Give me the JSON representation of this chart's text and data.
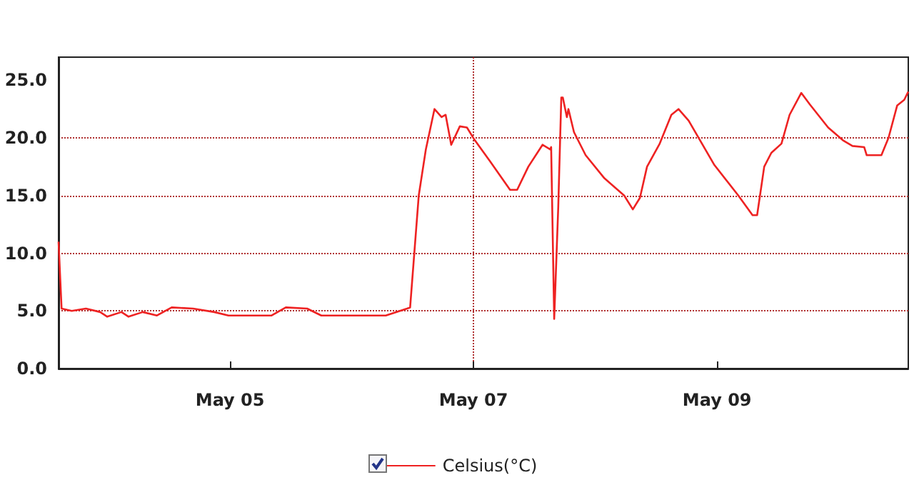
{
  "chart_data": {
    "type": "line",
    "x": [
      "--05-03T14:12",
      "--05-03T14:48",
      "--05-03T16:48",
      "--05-03T19:36",
      "--05-03T22:24",
      "--05-03T23:48",
      "--05-04T02:36",
      "--05-04T04:00",
      "--05-04T06:48",
      "--05-04T09:36",
      "--05-04T12:30",
      "--05-04T16:42",
      "--05-04T20:54",
      "--05-04T23:42",
      "--05-05T03:54",
      "--05-05T08:12",
      "--05-05T11:00",
      "--05-05T15:12",
      "--05-05T18:00",
      "--05-05T22:12",
      "--05-06T02:30",
      "--05-06T06:42",
      "--05-06T10:54",
      "--05-06T11:30",
      "--05-06T13:12",
      "--05-06T14:36",
      "--05-06T16:18",
      "--05-06T17:42",
      "--05-06T18:30",
      "--05-06T19:36",
      "--05-06T21:18",
      "--05-06T22:42",
      "--05-07T00:06",
      "--05-07T03:12",
      "--05-07T07:12",
      "--05-07T08:36",
      "--05-07T10:48",
      "--05-07T13:36",
      "--05-07T15:06",
      "--05-07T15:18",
      "--05-07T15:54",
      "--05-07T16:42",
      "--05-07T17:18",
      "--05-07T17:36",
      "--05-07T18:24",
      "--05-07T18:42",
      "--05-07T19:48",
      "--05-07T22:06",
      "--05-08T01:48",
      "--05-08T05:42",
      "--05-08T07:24",
      "--05-08T08:48",
      "--05-08T10:12",
      "--05-08T12:42",
      "--05-08T15:00",
      "--05-08T16:24",
      "--05-08T18:24",
      "--05-08T23:24",
      "--05-09T04:12",
      "--05-09T07:00",
      "--05-09T07:54",
      "--05-09T09:18",
      "--05-09T10:42",
      "--05-09T12:42",
      "--05-09T14:18",
      "--05-09T16:36",
      "--05-09T18:18",
      "--05-09T21:54",
      "--05-10T00:48",
      "--05-10T02:42",
      "--05-10T05:00",
      "--05-10T05:30",
      "--05-10T08:24",
      "--05-10T09:48",
      "--05-10T11:30",
      "--05-10T12:54",
      "--05-10T13:42"
    ],
    "series": [
      {
        "name": "Celsius(°C)",
        "color": "#ee2222",
        "values": [
          11.0,
          5.2,
          5.0,
          5.2,
          4.9,
          4.5,
          4.9,
          4.5,
          4.9,
          4.6,
          5.3,
          5.2,
          4.9,
          4.6,
          4.6,
          4.6,
          5.3,
          5.2,
          4.6,
          4.6,
          4.6,
          4.6,
          5.2,
          5.3,
          15.0,
          19.0,
          22.5,
          21.8,
          22.0,
          19.4,
          21.0,
          20.9,
          19.9,
          18.0,
          15.5,
          15.5,
          17.5,
          19.4,
          19.0,
          19.2,
          4.3,
          14.0,
          23.5,
          23.5,
          21.8,
          22.5,
          20.5,
          18.5,
          16.5,
          15.0,
          13.8,
          14.8,
          17.5,
          19.5,
          22.0,
          22.5,
          21.5,
          17.7,
          15.0,
          13.3,
          13.3,
          17.5,
          18.7,
          19.5,
          22.0,
          23.9,
          22.9,
          20.9,
          19.8,
          19.3,
          19.2,
          18.5,
          18.5,
          20.0,
          22.8,
          23.3,
          24.0
        ]
      }
    ],
    "xlim": [
      "--05-03T14:12",
      "--05-10T13:42"
    ],
    "xticks": [
      {
        "value": "--05-05",
        "label": "May 05"
      },
      {
        "value": "--05-07",
        "label": "May 07"
      },
      {
        "value": "--05-09",
        "label": "May 09"
      }
    ],
    "ylim": [
      0,
      27
    ],
    "yticks": [
      {
        "value": 0,
        "label": "0.0"
      },
      {
        "value": 5,
        "label": "5.0"
      },
      {
        "value": 10,
        "label": "10.0"
      },
      {
        "value": 15,
        "label": "15.0"
      },
      {
        "value": 20,
        "label": "20.0"
      },
      {
        "value": 25,
        "label": "25.0"
      }
    ],
    "grid": true,
    "legend": "bottom",
    "marker": "none",
    "line_style": "solid"
  }
}
